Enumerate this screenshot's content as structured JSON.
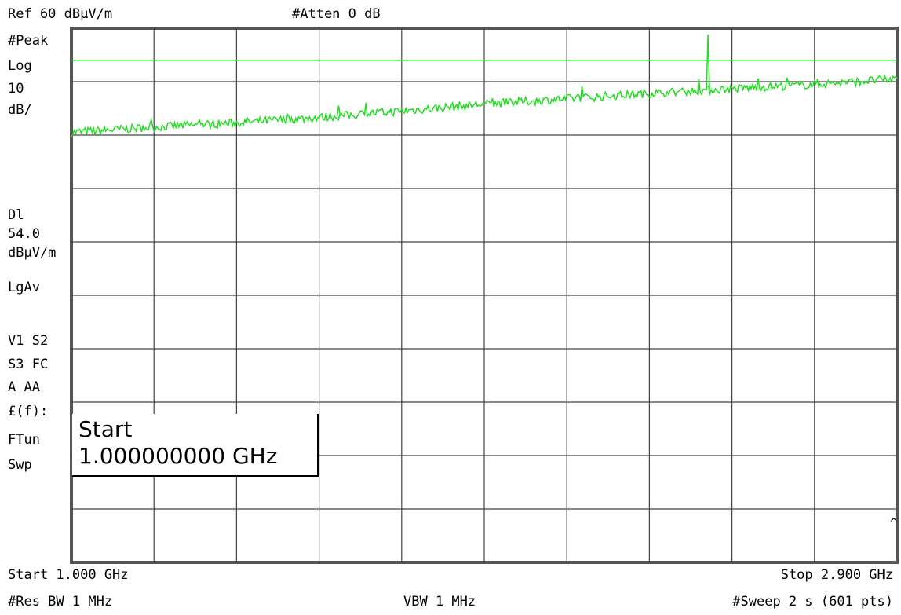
{
  "header": {
    "ref_level": "Ref 60 dBμV/m",
    "attenuation": "#Atten 0 dB"
  },
  "left_annotations": {
    "detector": "#Peak",
    "scale_type": "Log",
    "scale_value": "10",
    "scale_unit": "dB/",
    "display_line_label": "Dl",
    "display_line_value": "54.0",
    "display_line_unit": "dBμV/m",
    "avg_mode": "LgAv",
    "trace_flags_1": "V1  S2",
    "trace_flags_2": "S3  FC",
    "trace_flags_3": "A   AA",
    "corr_label": "£(f):",
    "ftun_label": "FTun",
    "swp_label": "Swp"
  },
  "active_function": {
    "label": "Start",
    "value": "1.000000000 GHz"
  },
  "footer": {
    "start_freq": "Start 1.000 GHz",
    "stop_freq": "Stop 2.900 GHz",
    "res_bw": "#Res BW 1 MHz",
    "vbw": "VBW 1 MHz",
    "sweep": "#Sweep 2 s (601 pts)"
  },
  "colors": {
    "trace": "#22dd22",
    "display_line": "#22dd22",
    "grid": "#444444",
    "frame": "#555555"
  },
  "chart_data": {
    "type": "line",
    "x_range_ghz": [
      1.0,
      2.9
    ],
    "y_reference_dbuv_m": 60,
    "y_scale_db_per_div": 10,
    "y_divisions": 10,
    "x_divisions": 10,
    "display_line_dbuv_m": 54.0,
    "series": [
      {
        "x": [
          1.0,
          1.19,
          1.38,
          1.57,
          1.76,
          1.95,
          2.14,
          2.33,
          2.52,
          2.71,
          2.9
        ],
        "y": [
          40.5,
          41.5,
          42.3,
          43.3,
          44.5,
          45.8,
          46.8,
          47.8,
          48.7,
          49.5,
          50.5
        ]
      }
    ],
    "spikes": [
      {
        "x": 1.615,
        "y": 45.5
      },
      {
        "x": 2.465,
        "y": 58.8
      }
    ]
  }
}
